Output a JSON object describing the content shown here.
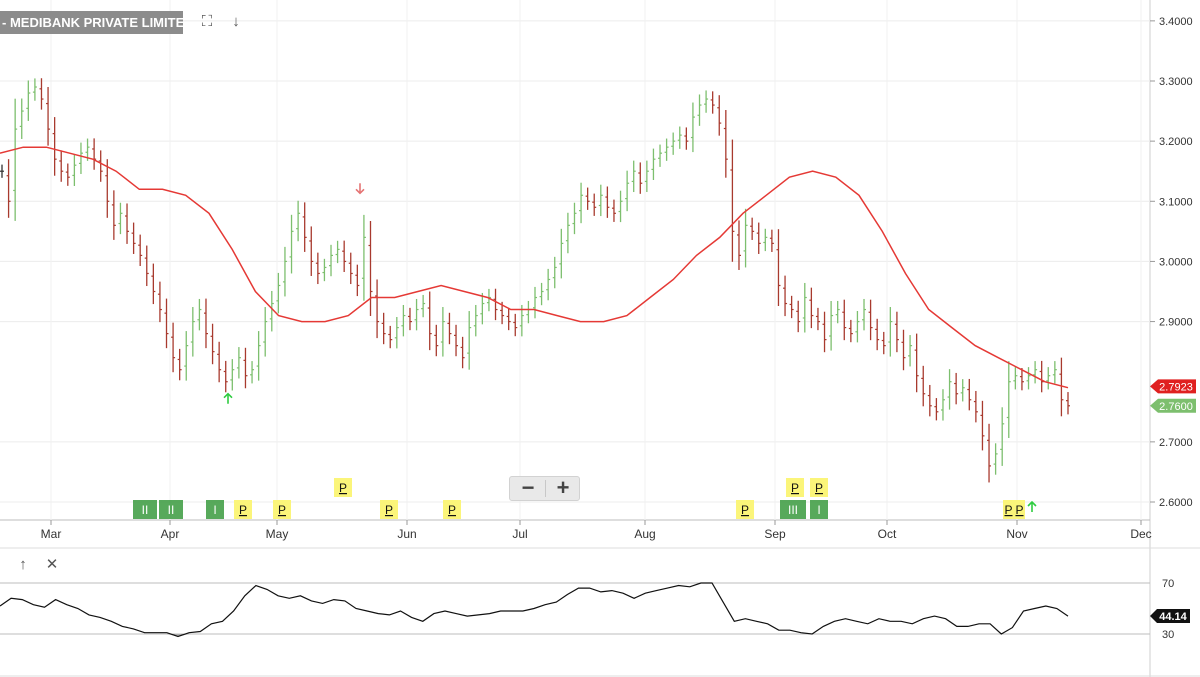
{
  "toolbar": {
    "title": "- MEDIBANK PRIVATE LIMITED",
    "fullscreen_icon": "expand-icon",
    "download_icon": "arrow-down-icon"
  },
  "zoom": {
    "minus_label": "−",
    "plus_label": "+"
  },
  "indicator_panel": {
    "up_icon": "arrow-up-icon",
    "close_icon": "close-icon"
  },
  "colors": {
    "up_bar": "#7dbf6e",
    "down_bar": "#a83a2e",
    "neutral_bar": "#333333",
    "moving_average": "#e53935",
    "oscillator": "#111111",
    "signal_green": "#2ecc40",
    "signal_red": "#e57373",
    "marker_yellow": "#fbf57a",
    "marker_green": "#3a9a3e"
  },
  "chart_data": [
    {
      "type": "line",
      "title": "- MEDIBANK PRIVATE LIMITED",
      "y_axis": {
        "ticks": [
          "3.4000",
          "3.3000",
          "3.2000",
          "3.1000",
          "3.0000",
          "2.9000",
          "2.7000",
          "2.6000"
        ],
        "ylim": [
          2.58,
          3.42
        ]
      },
      "x_axis": {
        "ticks": [
          "Mar",
          "Apr",
          "May",
          "Jun",
          "Jul",
          "Aug",
          "Sep",
          "Oct",
          "Nov",
          "Dec"
        ]
      },
      "price_label": "2.7600",
      "ma_label": "2.7923",
      "series": [
        {
          "style": "ohlc",
          "values": [
            3.15,
            3.1,
            3.22,
            3.25,
            3.28,
            3.29,
            3.27,
            3.22,
            3.17,
            3.15,
            3.14,
            3.16,
            3.18,
            3.19,
            3.17,
            3.15,
            3.1,
            3.06,
            3.08,
            3.05,
            3.03,
            3.01,
            2.98,
            2.95,
            2.92,
            2.88,
            2.84,
            2.82,
            2.86,
            2.9,
            2.92,
            2.88,
            2.85,
            2.82,
            2.8,
            2.82,
            2.84,
            2.81,
            2.82,
            2.86,
            2.9,
            2.93,
            2.96,
            3.0,
            3.05,
            3.08,
            3.04,
            3.0,
            2.98,
            2.99,
            3.01,
            3.02,
            3.0,
            2.98,
            2.96,
            3.04,
            2.95,
            2.9,
            2.88,
            2.87,
            2.89,
            2.91,
            2.9,
            2.92,
            2.93,
            2.88,
            2.86,
            2.9,
            2.88,
            2.86,
            2.84,
            2.89,
            2.91,
            2.93,
            2.94,
            2.92,
            2.91,
            2.9,
            2.89,
            2.91,
            2.92,
            2.94,
            2.95,
            2.97,
            2.99,
            3.03,
            3.06,
            3.08,
            3.11,
            3.1,
            3.09,
            3.11,
            3.09,
            3.08,
            3.1,
            3.13,
            3.15,
            3.13,
            3.15,
            3.17,
            3.18,
            3.19,
            3.2,
            3.21,
            3.2,
            3.24,
            3.26,
            3.27,
            3.26,
            3.23,
            3.17,
            3.05,
            3.01,
            3.06,
            3.05,
            3.03,
            3.04,
            3.03,
            2.96,
            2.93,
            2.92,
            2.9,
            2.94,
            2.91,
            2.9,
            2.87,
            2.91,
            2.92,
            2.89,
            2.88,
            2.9,
            2.92,
            2.89,
            2.87,
            2.86,
            2.9,
            2.87,
            2.84,
            2.86,
            2.81,
            2.78,
            2.76,
            2.75,
            2.77,
            2.8,
            2.78,
            2.79,
            2.77,
            2.75,
            2.71,
            2.66,
            2.68,
            2.73,
            2.8,
            2.81,
            2.8,
            2.81,
            2.82,
            2.8,
            2.81,
            2.82,
            2.77,
            2.76
          ]
        },
        {
          "name": "",
          "style": "moving-average",
          "values": [
            3.18,
            3.19,
            3.19,
            3.18,
            3.17,
            3.15,
            3.12,
            3.12,
            3.11,
            3.08,
            3.02,
            2.95,
            2.91,
            2.9,
            2.9,
            2.91,
            2.94,
            2.94,
            2.95,
            2.96,
            2.95,
            2.94,
            2.92,
            2.92,
            2.91,
            2.9,
            2.9,
            2.91,
            2.94,
            2.97,
            3.01,
            3.04,
            3.08,
            3.11,
            3.14,
            3.15,
            3.14,
            3.11,
            3.05,
            2.98,
            2.92,
            2.89,
            2.86,
            2.84,
            2.82,
            2.8,
            2.79
          ]
        }
      ],
      "signals": [
        {
          "x_ratio": 0.19,
          "direction": "up",
          "price": 2.78
        },
        {
          "x_ratio": 0.3,
          "direction": "down",
          "price": 3.11
        },
        {
          "x_ratio": 0.86,
          "direction": "up",
          "price": 2.6
        }
      ],
      "markers": {
        "labels": [
          "II",
          "II",
          "I",
          "P",
          "P",
          "P",
          "P",
          "P",
          "P",
          "P",
          "P",
          "III",
          "I",
          "P",
          "P"
        ],
        "kinds": [
          "green",
          "green",
          "green",
          "yellow",
          "yellow",
          "yellow",
          "yellow",
          "yellow",
          "yellow",
          "yellow",
          "yellow",
          "green",
          "green",
          "yellow",
          "yellow"
        ]
      }
    },
    {
      "type": "line",
      "y_axis": {
        "ticks": [
          "70",
          "30"
        ],
        "ylim": [
          0,
          100
        ]
      },
      "value_label": "44.14",
      "series": [
        {
          "values": [
            52,
            58,
            57,
            53,
            51,
            57,
            53,
            50,
            45,
            43,
            40,
            36,
            34,
            31,
            31,
            31,
            28,
            31,
            32,
            38,
            40,
            48,
            60,
            68,
            65,
            60,
            58,
            60,
            56,
            54,
            57,
            56,
            50,
            48,
            46,
            45,
            48,
            43,
            40,
            46,
            48,
            46,
            44,
            45,
            46,
            48,
            48,
            48,
            50,
            53,
            55,
            61,
            66,
            66,
            63,
            64,
            62,
            58,
            62,
            64,
            66,
            68,
            67,
            70,
            70,
            55,
            40,
            42,
            40,
            38,
            33,
            33,
            31,
            30,
            36,
            40,
            42,
            40,
            38,
            42,
            40,
            40,
            38,
            42,
            44,
            42,
            36,
            36,
            38,
            38,
            30,
            35,
            48,
            50,
            52,
            50,
            44
          ]
        }
      ]
    }
  ]
}
